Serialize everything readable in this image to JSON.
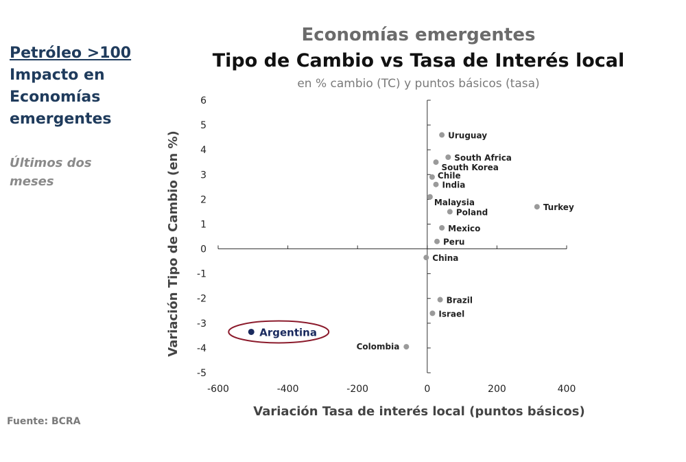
{
  "sidebar": {
    "title_lines": [
      "Petróleo >100",
      "Impacto en",
      "Economías",
      "emergentes"
    ],
    "subtitle_lines": [
      "Últimos dos",
      "meses"
    ]
  },
  "source": "Fuente: BCRA",
  "chart_data": {
    "type": "scatter",
    "title": "Economías emergentes",
    "subtitle": "Tipo de Cambio vs Tasa de Interés local",
    "caption": "en % cambio (TC) y puntos básicos (tasa)",
    "xlabel": "Variación Tasa de interés local (puntos básicos)",
    "ylabel": "Variación Tipo de Cambio (en %)",
    "xlim": [
      -600,
      400
    ],
    "ylim": [
      -5,
      6
    ],
    "x_ticks": [
      -600,
      -400,
      -200,
      0,
      200,
      400
    ],
    "y_ticks": [
      6,
      5,
      4,
      3,
      2,
      1,
      0,
      -1,
      -2,
      -3,
      -4,
      -5
    ],
    "points": [
      {
        "label": "Uruguay",
        "x": 42,
        "y": 4.6
      },
      {
        "label": "South Africa",
        "x": 60,
        "y": 3.7
      },
      {
        "label": "South Korea",
        "x": 25,
        "y": 3.5
      },
      {
        "label": "Chile",
        "x": 14,
        "y": 2.9
      },
      {
        "label": "India",
        "x": 25,
        "y": 2.6
      },
      {
        "label": "Malaysia",
        "x": 8,
        "y": 2.1
      },
      {
        "label": "Poland",
        "x": 65,
        "y": 1.5
      },
      {
        "label": "Turkey",
        "x": 315,
        "y": 1.7
      },
      {
        "label": "Mexico",
        "x": 42,
        "y": 0.85
      },
      {
        "label": "Peru",
        "x": 28,
        "y": 0.3
      },
      {
        "label": "China",
        "x": -3,
        "y": -0.35
      },
      {
        "label": "Brazil",
        "x": 37,
        "y": -2.05
      },
      {
        "label": "Israel",
        "x": 15,
        "y": -2.6
      },
      {
        "label": "Colombia",
        "x": -60,
        "y": -3.95
      },
      {
        "label": "Argentina",
        "x": -505,
        "y": -3.35,
        "highlight": true
      }
    ],
    "colors": {
      "point": "#9a9a9a",
      "highlight": "#1a2a5e",
      "ellipse": "#8b1a2b"
    },
    "grid": false
  }
}
